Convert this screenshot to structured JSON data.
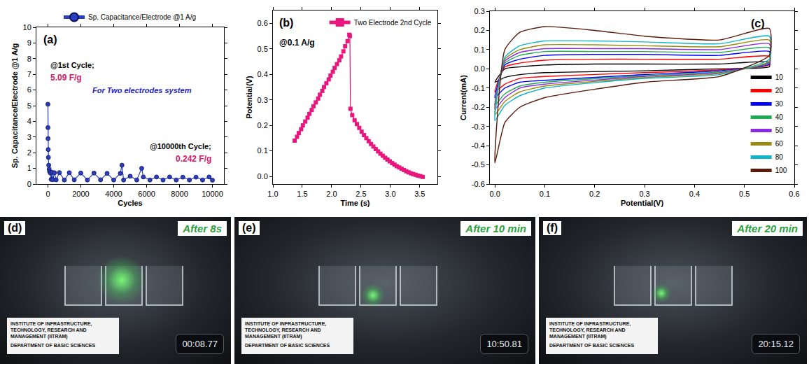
{
  "chart_data": [
    {
      "type": "line",
      "marker": "circle",
      "grid": false,
      "legend": "top",
      "x_label": "Cycles",
      "y_label": "Sp. Capacitance/Electrode @1 A/g",
      "xlim": [
        -700,
        10700
      ],
      "xticks": [
        0,
        2000,
        4000,
        6000,
        8000,
        10000
      ],
      "ylim": [
        0,
        10
      ],
      "yticks": [
        0,
        1,
        2,
        3,
        4,
        5,
        6,
        7,
        8,
        9,
        10
      ],
      "annotations": [
        "(a)",
        "@1st Cycle;",
        "5.09 F/g",
        "For Two electrodes system",
        "@10000th Cycle;",
        "0.242 F/g"
      ],
      "series": [
        {
          "name": "Sp. Capacitance/Electrode @1 A/g",
          "color": "#2a3fbf",
          "x": [
            1,
            5,
            10,
            20,
            30,
            50,
            75,
            100,
            150,
            200,
            250,
            300,
            400,
            500,
            700,
            1000,
            1300,
            1600,
            2000,
            2400,
            2800,
            3200,
            3600,
            4000,
            4400,
            4500,
            4600,
            5000,
            5400,
            5700,
            5800,
            6200,
            6600,
            7000,
            7400,
            7800,
            8200,
            8600,
            9000,
            9400,
            9800,
            10000
          ],
          "values": [
            5.09,
            3.6,
            2.9,
            2.2,
            1.7,
            1.2,
            0.95,
            0.8,
            0.7,
            0.3,
            0.75,
            0.28,
            0.72,
            0.27,
            0.73,
            0.26,
            0.72,
            0.27,
            0.7,
            0.26,
            0.7,
            0.27,
            0.68,
            0.26,
            0.68,
            1.2,
            0.26,
            0.5,
            0.26,
            1.0,
            0.45,
            0.26,
            0.45,
            0.26,
            0.45,
            0.26,
            0.44,
            0.26,
            0.44,
            0.26,
            0.45,
            0.242
          ]
        }
      ]
    },
    {
      "type": "line",
      "marker": "square",
      "grid": false,
      "legend": "top right",
      "x_label": "Time (s)",
      "y_label": "Potential(V)",
      "xlim": [
        1.0,
        3.8
      ],
      "xticks": [
        {
          "value": 1,
          "label": "1.0"
        },
        1.5,
        {
          "value": 2,
          "label": "2.0"
        },
        2.5,
        {
          "value": 3,
          "label": "3.0"
        },
        3.5
      ],
      "ylim": [
        -0.03,
        0.65
      ],
      "yticks": [
        {
          "value": 0,
          "label": "0.0"
        },
        0.1,
        0.2,
        0.3,
        0.4,
        0.5,
        0.6
      ],
      "annotations": [
        "(b)",
        "@0.1 A/g"
      ],
      "series": [
        {
          "name": "Two Electrode 2nd Cycle",
          "color": "#e8177d",
          "x": [
            1.37,
            1.41,
            1.44,
            1.48,
            1.51,
            1.55,
            1.59,
            1.62,
            1.66,
            1.69,
            1.73,
            1.77,
            1.8,
            1.84,
            1.87,
            1.91,
            1.95,
            1.98,
            2.02,
            2.05,
            2.09,
            2.13,
            2.16,
            2.2,
            2.23,
            2.27,
            2.3,
            2.31,
            2.32,
            2.35,
            2.39,
            2.43,
            2.47,
            2.51,
            2.55,
            2.59,
            2.63,
            2.67,
            2.71,
            2.75,
            2.79,
            2.83,
            2.87,
            2.91,
            2.95,
            2.99,
            3.03,
            3.07,
            3.11,
            3.15,
            3.19,
            3.23,
            3.27,
            3.31,
            3.35,
            3.39,
            3.43,
            3.47,
            3.51,
            3.55
          ],
          "values": [
            0.14,
            0.155,
            0.17,
            0.185,
            0.2,
            0.215,
            0.23,
            0.245,
            0.26,
            0.275,
            0.29,
            0.305,
            0.32,
            0.335,
            0.35,
            0.365,
            0.38,
            0.395,
            0.41,
            0.425,
            0.44,
            0.455,
            0.47,
            0.49,
            0.51,
            0.53,
            0.555,
            0.55,
            0.265,
            0.24,
            0.22,
            0.205,
            0.19,
            0.175,
            0.162,
            0.15,
            0.138,
            0.127,
            0.117,
            0.107,
            0.098,
            0.089,
            0.081,
            0.073,
            0.066,
            0.059,
            0.052,
            0.046,
            0.04,
            0.035,
            0.03,
            0.025,
            0.02,
            0.016,
            0.012,
            0.009,
            0.006,
            0.003,
            0.001,
            -0.002
          ]
        }
      ]
    },
    {
      "type": "line",
      "grid": false,
      "legend": "bottom right",
      "x_label": "Potential(V)",
      "y_label": "Current(mA)",
      "xlim": [
        -0.01,
        0.6
      ],
      "xticks": [
        {
          "value": 0,
          "label": "0.0"
        },
        0.1,
        0.2,
        0.3,
        0.4,
        0.5,
        0.6
      ],
      "ylim": [
        -0.6,
        0.3
      ],
      "yticks": [
        -0.6,
        -0.5,
        -0.4,
        -0.3,
        -0.2,
        -0.1,
        {
          "value": 0,
          "label": "0.0"
        },
        0.1,
        0.2,
        0.3
      ],
      "annotations": [
        "(c)"
      ],
      "x": [
        0,
        0.02,
        0.05,
        0.1,
        0.2,
        0.3,
        0.45,
        0.55,
        0.55,
        0.45,
        0.3,
        0.1,
        0.05,
        0.02,
        0
      ],
      "series": [
        {
          "name": "10",
          "color": "#000000",
          "values": [
            -0.07,
            0.0,
            0.01,
            0.02,
            0.025,
            0.025,
            0.025,
            0.035,
            0.01,
            0.0,
            -0.01,
            -0.02,
            -0.03,
            -0.045,
            -0.07
          ]
        },
        {
          "name": "20",
          "color": "#ff0000",
          "values": [
            -0.12,
            0.01,
            0.03,
            0.045,
            0.05,
            0.05,
            0.05,
            0.065,
            0.02,
            -0.005,
            -0.02,
            -0.04,
            -0.05,
            -0.08,
            -0.12
          ]
        },
        {
          "name": "30",
          "color": "#0000ff",
          "values": [
            -0.15,
            0.02,
            0.05,
            0.07,
            0.075,
            0.075,
            0.07,
            0.09,
            0.025,
            -0.01,
            -0.03,
            -0.06,
            -0.07,
            -0.1,
            -0.15
          ]
        },
        {
          "name": "40",
          "color": "#1faa55",
          "values": [
            -0.19,
            0.03,
            0.07,
            0.09,
            0.09,
            0.09,
            0.085,
            0.11,
            0.03,
            -0.015,
            -0.035,
            -0.07,
            -0.09,
            -0.13,
            -0.19
          ]
        },
        {
          "name": "50",
          "color": "#8a2be2",
          "values": [
            -0.21,
            0.04,
            0.085,
            0.105,
            0.105,
            0.105,
            0.1,
            0.13,
            0.035,
            -0.02,
            -0.04,
            -0.08,
            -0.1,
            -0.15,
            -0.21
          ]
        },
        {
          "name": "60",
          "color": "#9a8a10",
          "values": [
            -0.24,
            0.05,
            0.1,
            0.125,
            0.125,
            0.12,
            0.115,
            0.15,
            0.04,
            -0.025,
            -0.045,
            -0.09,
            -0.12,
            -0.17,
            -0.24
          ]
        },
        {
          "name": "80",
          "color": "#10b5c8",
          "values": [
            -0.27,
            0.06,
            0.12,
            0.145,
            0.145,
            0.14,
            0.13,
            0.17,
            0.05,
            -0.03,
            -0.05,
            -0.1,
            -0.14,
            -0.19,
            -0.27
          ]
        },
        {
          "name": "100",
          "color": "#5a1a0a",
          "values": [
            -0.49,
            0.1,
            0.19,
            0.22,
            0.2,
            0.17,
            0.15,
            0.21,
            0.07,
            -0.04,
            -0.07,
            -0.15,
            -0.2,
            -0.28,
            -0.49
          ]
        }
      ]
    }
  ],
  "photos": [
    {
      "label": "(d)",
      "caption": "After 8s",
      "card": [
        "INSTITUTE OF INFRASTRUCTURE, TECHNOLOGY, RESEARCH AND MANAGEMENT (IITRAM)",
        "DEPARTMENT OF BASIC SCIENCES"
      ],
      "timer": "00:08.77"
    },
    {
      "label": "(e)",
      "caption": "After 10 min",
      "card": [
        "INSTITUTE OF INFRASTRUCTURE, TECHNOLOGY, RESEARCH AND MANAGEMENT (IITRAM)",
        "DEPARTMENT OF BASIC SCIENCES"
      ],
      "timer": "10:50.81"
    },
    {
      "label": "(f)",
      "caption": "After 20 min",
      "card": [
        "INSTITUTE OF INFRASTRUCTURE, TECHNOLOGY, RESEARCH AND MANAGEMENT (IITRAM)",
        "DEPARTMENT OF BASIC SCIENCES"
      ],
      "timer": "20:15.12"
    }
  ]
}
